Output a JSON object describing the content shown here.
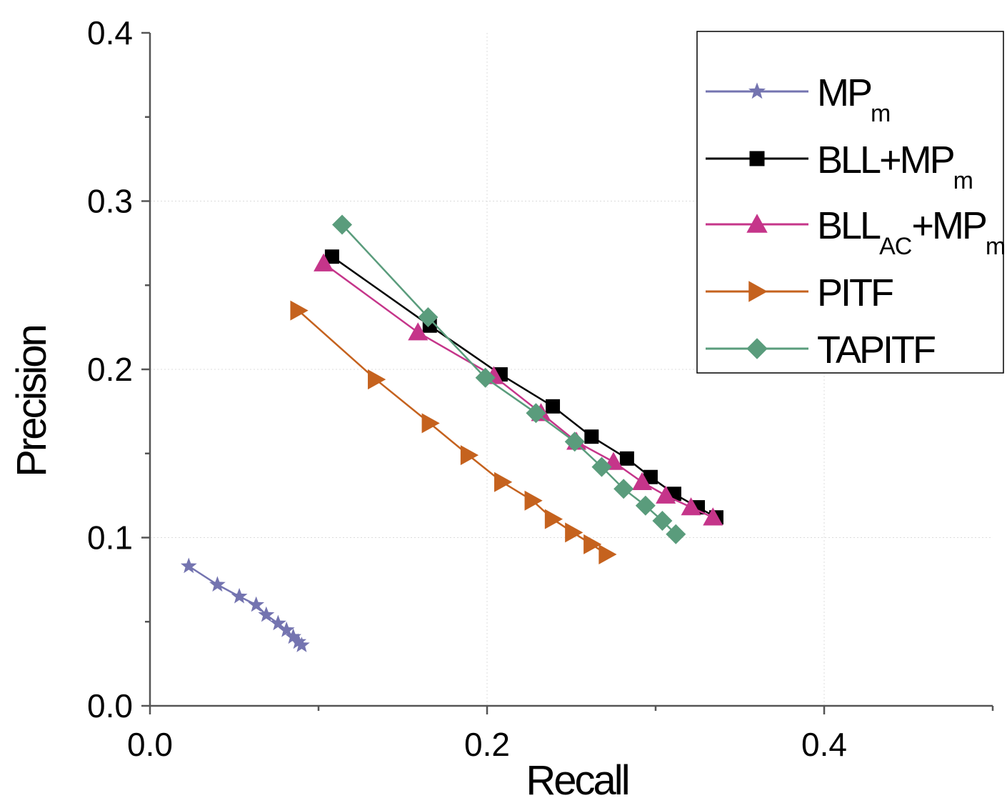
{
  "chart_data": {
    "type": "line",
    "xlabel": "Recall",
    "ylabel": "Precision",
    "xlim": [
      0,
      0.5
    ],
    "ylim": [
      0,
      0.4
    ],
    "x_ticks": [
      "0.0",
      "0.2",
      "0.4"
    ],
    "y_ticks": [
      "0.0",
      "0.1",
      "0.2",
      "0.3",
      "0.4"
    ],
    "grid": true,
    "legend_position": "top-right",
    "series": [
      {
        "name": "MPm",
        "label_main": "MP",
        "label_sub": "m",
        "label_tail": "",
        "color": "#7474b0",
        "marker": "star",
        "x": [
          0.023,
          0.04,
          0.053,
          0.063,
          0.069,
          0.076,
          0.081,
          0.085,
          0.088,
          0.09
        ],
        "y": [
          0.083,
          0.072,
          0.065,
          0.06,
          0.054,
          0.049,
          0.045,
          0.041,
          0.038,
          0.036
        ]
      },
      {
        "name": "BLL+MPm",
        "label_main": "BLL+MP",
        "label_sub": "m",
        "label_tail": "",
        "color": "#000000",
        "marker": "square",
        "x": [
          0.108,
          0.166,
          0.208,
          0.239,
          0.262,
          0.283,
          0.297,
          0.311,
          0.325,
          0.336
        ],
        "y": [
          0.267,
          0.226,
          0.197,
          0.178,
          0.16,
          0.147,
          0.136,
          0.126,
          0.118,
          0.112
        ]
      },
      {
        "name": "BLLAC+MPm",
        "label_main": "BLL",
        "label_sub": "AC",
        "label_tail": "+MP",
        "label_sub2": "m",
        "color": "#c5358a",
        "marker": "triangle-up",
        "x": [
          0.103,
          0.159,
          0.204,
          0.232,
          0.253,
          0.275,
          0.292,
          0.306,
          0.321,
          0.334
        ],
        "y": [
          0.263,
          0.222,
          0.196,
          0.174,
          0.157,
          0.145,
          0.133,
          0.125,
          0.118,
          0.112
        ]
      },
      {
        "name": "PITF",
        "label_main": "PITF",
        "label_sub": "",
        "label_tail": "",
        "color": "#c5621e",
        "marker": "triangle-right",
        "x": [
          0.088,
          0.134,
          0.166,
          0.189,
          0.209,
          0.227,
          0.239,
          0.251,
          0.262,
          0.271
        ],
        "y": [
          0.235,
          0.194,
          0.168,
          0.149,
          0.133,
          0.122,
          0.111,
          0.103,
          0.096,
          0.09
        ]
      },
      {
        "name": "TAPITF",
        "label_main": "TAPITF",
        "label_sub": "",
        "label_tail": "",
        "color": "#5a9c7c",
        "marker": "diamond",
        "x": [
          0.114,
          0.165,
          0.199,
          0.229,
          0.252,
          0.268,
          0.281,
          0.294,
          0.304,
          0.312
        ],
        "y": [
          0.286,
          0.231,
          0.195,
          0.174,
          0.157,
          0.142,
          0.129,
          0.119,
          0.11,
          0.102
        ]
      }
    ]
  }
}
